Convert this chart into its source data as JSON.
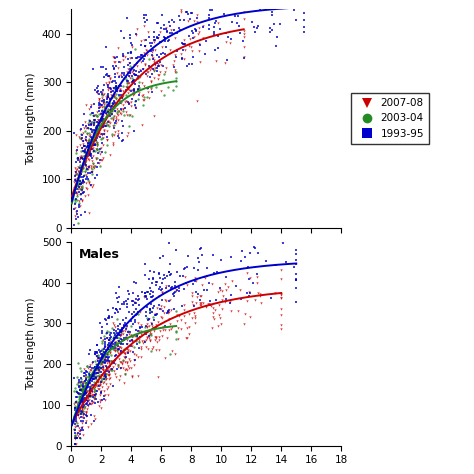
{
  "subplot_labels": [
    "",
    "Males"
  ],
  "ylabel": "Total length (mm)",
  "colors": {
    "2007-08": "#cc0000",
    "2003-04": "#228B22",
    "1993-95": "#0000cc"
  },
  "markers": {
    "2007-08": "v",
    "2003-04": "o",
    "1993-95": "s"
  },
  "legend_labels": [
    "2007-08",
    "2003-04",
    "1993-95"
  ],
  "females": {
    "vbgf": {
      "2007-08": {
        "Linf": 430.0,
        "K": 0.25,
        "t0": -0.6
      },
      "2003-04": {
        "Linf": 310.0,
        "K": 0.5,
        "t0": -0.3
      },
      "1993-95": {
        "Linf": 460.0,
        "K": 0.28,
        "t0": -0.4
      }
    },
    "data_extent": {
      "2007-08": {
        "tmin": 0.2,
        "tmax": 11.5
      },
      "2003-04": {
        "tmin": 0.2,
        "tmax": 7.0
      },
      "1993-95": {
        "tmin": 0.2,
        "tmax": 15.5
      }
    },
    "n_points": {
      "2007-08": 450,
      "2003-04": 180,
      "1993-95": 550
    },
    "ylim": [
      0,
      450
    ],
    "xlim": [
      0,
      18
    ],
    "yticks": [
      0,
      100,
      200,
      300,
      400
    ]
  },
  "males": {
    "vbgf": {
      "2007-08": {
        "Linf": 390.0,
        "K": 0.22,
        "t0": -0.6
      },
      "2003-04": {
        "Linf": 300.0,
        "K": 0.52,
        "t0": -0.3
      },
      "1993-95": {
        "Linf": 455.0,
        "K": 0.26,
        "t0": -0.4
      }
    },
    "data_extent": {
      "2007-08": {
        "tmin": 0.2,
        "tmax": 14.0
      },
      "2003-04": {
        "tmin": 0.2,
        "tmax": 7.0
      },
      "1993-95": {
        "tmin": 0.2,
        "tmax": 15.0
      }
    },
    "n_points": {
      "2007-08": 500,
      "2003-04": 180,
      "1993-95": 550
    },
    "ylim": [
      0,
      500
    ],
    "xlim": [
      0,
      18
    ],
    "yticks": [
      0,
      100,
      200,
      300,
      400,
      500
    ]
  },
  "xticks": [
    0,
    2,
    4,
    6,
    8,
    10,
    12,
    14,
    16,
    18
  ],
  "seeds_females": {
    "2007-08": 42,
    "2003-04": 43,
    "1993-95": 44
  },
  "seeds_males": {
    "2007-08": 52,
    "2003-04": 53,
    "1993-95": 54
  }
}
